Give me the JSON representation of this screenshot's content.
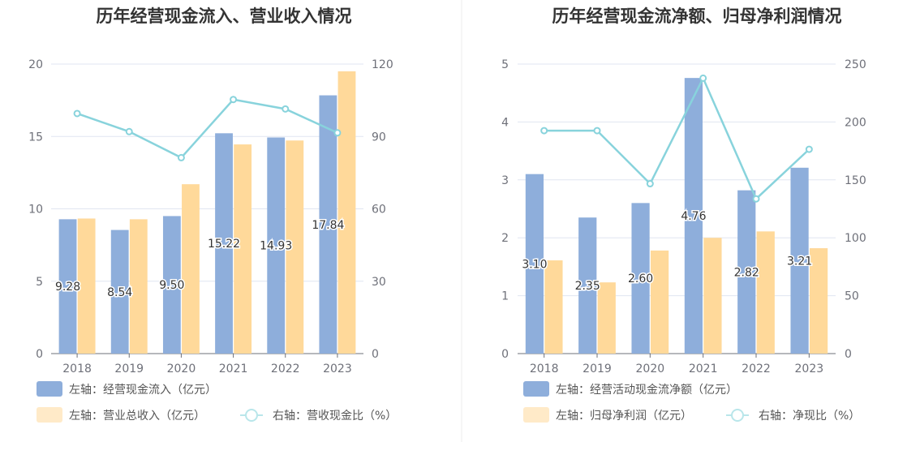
{
  "chart_data": [
    {
      "type": "bar",
      "title": "历年经营现金流入、营业收入情况",
      "categories": [
        "2018",
        "2019",
        "2020",
        "2021",
        "2022",
        "2023"
      ],
      "left_axis": {
        "ylim": [
          0,
          20
        ],
        "ticks": [
          "0",
          "5",
          "10",
          "15",
          "20"
        ]
      },
      "right_axis": {
        "ylim": [
          0,
          120
        ],
        "ticks": [
          "0",
          "30",
          "60",
          "90",
          "120"
        ]
      },
      "series": [
        {
          "name": "左轴：经营现金流入（亿元）",
          "kind": "bar",
          "axis": "left",
          "color": "#8eaedb",
          "values": [
            9.28,
            8.54,
            9.5,
            15.22,
            14.93,
            17.84
          ],
          "labels": [
            "9.28",
            "8.54",
            "9.50",
            "15.22",
            "14.93",
            "17.84"
          ]
        },
        {
          "name": "左轴：营业总收入（亿元）",
          "kind": "bar",
          "axis": "left",
          "color": "#ffd99a",
          "values": [
            9.33,
            9.28,
            11.7,
            14.45,
            14.72,
            19.5
          ]
        },
        {
          "name": "右轴：营收现金比（%）",
          "kind": "line",
          "axis": "right",
          "color": "#88d3dc",
          "values": [
            99.5,
            92.0,
            81.2,
            105.3,
            101.4,
            91.5
          ]
        }
      ],
      "grid": true,
      "legend_position": "bottom"
    },
    {
      "type": "bar",
      "title": "历年经营现金流净额、归母净利润情况",
      "categories": [
        "2018",
        "2019",
        "2020",
        "2021",
        "2022",
        "2023"
      ],
      "left_axis": {
        "ylim": [
          0,
          5
        ],
        "ticks": [
          "0",
          "1",
          "2",
          "3",
          "4",
          "5"
        ]
      },
      "right_axis": {
        "ylim": [
          0,
          250
        ],
        "ticks": [
          "0",
          "50",
          "100",
          "150",
          "200",
          "250"
        ]
      },
      "series": [
        {
          "name": "左轴：经营活动现金流净额（亿元）",
          "kind": "bar",
          "axis": "left",
          "color": "#8eaedb",
          "values": [
            3.1,
            2.35,
            2.6,
            4.76,
            2.82,
            3.21
          ],
          "labels": [
            "3.10",
            "2.35",
            "2.60",
            "4.76",
            "2.82",
            "3.21"
          ]
        },
        {
          "name": "左轴：归母净利润（亿元）",
          "kind": "bar",
          "axis": "left",
          "color": "#ffd99a",
          "values": [
            1.61,
            1.23,
            1.78,
            2.0,
            2.11,
            1.82
          ]
        },
        {
          "name": "右轴：净现比（%）",
          "kind": "line",
          "axis": "right",
          "color": "#88d3dc",
          "values": [
            192.5,
            192.5,
            146.7,
            237.8,
            133.6,
            176.4
          ]
        }
      ],
      "grid": true,
      "legend_position": "bottom"
    }
  ]
}
